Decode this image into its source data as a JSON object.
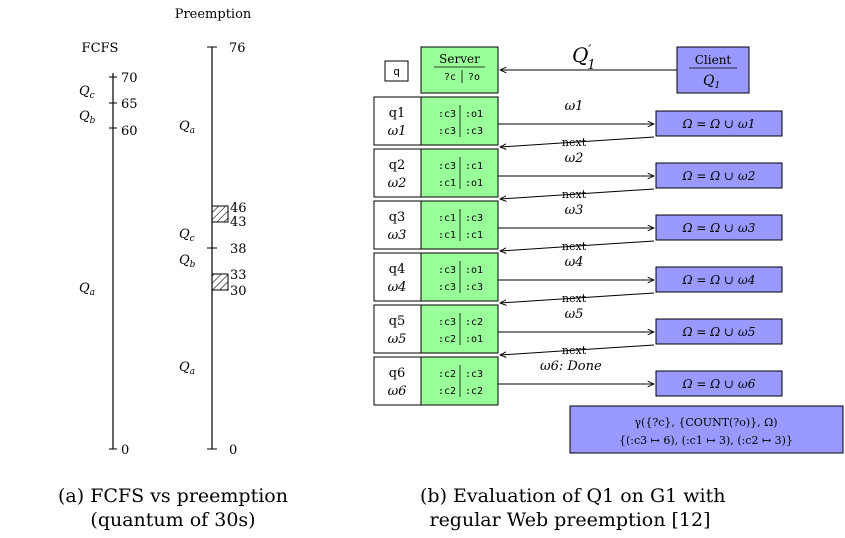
{
  "left": {
    "fcfs_title": "FCFS",
    "preemption_title": "Preemption",
    "fcfs_ticks": [
      {
        "label": "70",
        "value": 70
      },
      {
        "label": "65",
        "value": 65
      },
      {
        "label": "60",
        "value": 60
      },
      {
        "label": "0",
        "value": 0
      }
    ],
    "fcfs_queries": [
      {
        "label": "Qc",
        "sub": "c"
      },
      {
        "label": "Qb",
        "sub": "b"
      },
      {
        "label": "Qa",
        "sub": "a"
      }
    ],
    "pre_ticks": [
      {
        "label": "76",
        "value": 76
      },
      {
        "label": "46",
        "value": 46
      },
      {
        "label": "43",
        "value": 43
      },
      {
        "label": "38",
        "value": 38
      },
      {
        "label": "33",
        "value": 33
      },
      {
        "label": "30",
        "value": 30
      },
      {
        "label": "0",
        "value": 0
      }
    ],
    "pre_queries": [
      {
        "label": "Qa",
        "sub": "a"
      },
      {
        "label": "Qc",
        "sub": "c"
      },
      {
        "label": "Qb",
        "sub": "b"
      },
      {
        "label": "Qa",
        "sub": "a"
      }
    ],
    "caption": [
      "(a) FCFS vs preemption",
      "(quantum of 30s)"
    ]
  },
  "right": {
    "q_box": "q",
    "server_title": "Server",
    "server_vars": [
      "?c",
      "?o"
    ],
    "client_title": "Client",
    "client_query": "Q1",
    "q_prime": "Q'1",
    "rows": [
      {
        "q": "q1",
        "w": "ω1",
        "top": [
          ":c3",
          ":o1"
        ],
        "bot": [
          ":c3",
          ":c3"
        ],
        "arrow": "ω1",
        "next": "next",
        "result": "Ω = Ω ∪ ω1"
      },
      {
        "q": "q2",
        "w": "ω2",
        "top": [
          ":c3",
          ":c1"
        ],
        "bot": [
          ":c1",
          ":o1"
        ],
        "arrow": "ω2",
        "next": "next",
        "result": "Ω = Ω ∪ ω2"
      },
      {
        "q": "q3",
        "w": "ω3",
        "top": [
          ":c1",
          ":c3"
        ],
        "bot": [
          ":c1",
          ":c1"
        ],
        "arrow": "ω3",
        "next": "next",
        "result": "Ω = Ω ∪ ω3"
      },
      {
        "q": "q4",
        "w": "ω4",
        "top": [
          ":c3",
          ":o1"
        ],
        "bot": [
          ":c3",
          ":c3"
        ],
        "arrow": "ω4",
        "next": "next",
        "result": "Ω = Ω ∪ ω4"
      },
      {
        "q": "q5",
        "w": "ω5",
        "top": [
          ":c3",
          ":c2"
        ],
        "bot": [
          ":c2",
          ":o1"
        ],
        "arrow": "ω5",
        "next": "next",
        "result": "Ω = Ω ∪ ω5"
      },
      {
        "q": "q6",
        "w": "ω6",
        "top": [
          ":c2",
          ":c3"
        ],
        "bot": [
          ":c2",
          ":c2"
        ],
        "arrow": "ω6: Done",
        "next": "",
        "result": "Ω = Ω ∪ ω6"
      }
    ],
    "aggregate_line1": "γ({?c}, {COUNT(?o)}, Ω)",
    "aggregate_line2": "{(:c3 ↦ 6), (:c1 ↦ 3), (:c2 ↦ 3)}",
    "caption": [
      "(b) Evaluation of Q1 on G1 with",
      "regular Web preemption [12]"
    ]
  },
  "colors": {
    "server_green": "#99ff99",
    "client_blue": "#9999ff"
  }
}
